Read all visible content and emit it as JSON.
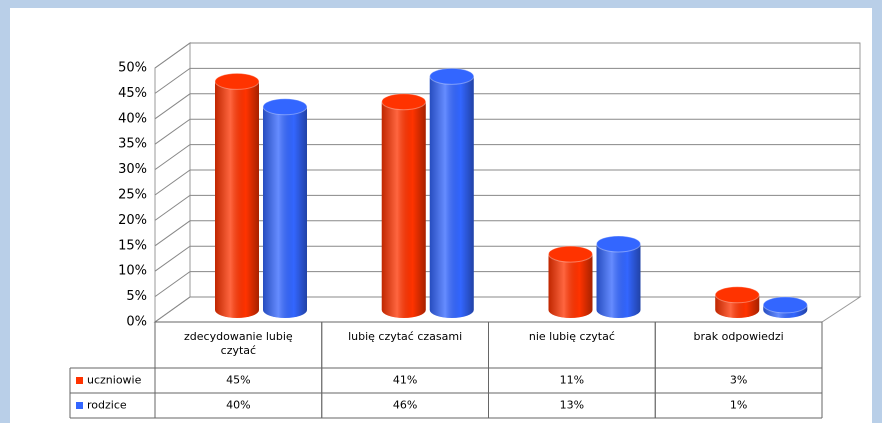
{
  "chart_data": {
    "type": "bar3d",
    "categories": [
      "zdecydowanie lubię czytać",
      "lubię czytać czasami",
      "nie lubię czytać",
      "brak odpowiedzi"
    ],
    "series": [
      {
        "name": "uczniowie",
        "color": "#ff3300",
        "values": [
          45,
          41,
          11,
          3
        ],
        "value_labels": [
          "45%",
          "41%",
          "11%",
          "3%"
        ]
      },
      {
        "name": "rodzice",
        "color": "#3366ff",
        "values": [
          40,
          46,
          13,
          1
        ],
        "value_labels": [
          "40%",
          "46%",
          "13%",
          "1%"
        ]
      }
    ],
    "ylim": [
      0,
      50
    ],
    "yticks": [
      {
        "value": 0,
        "label": "0%"
      },
      {
        "value": 5,
        "label": "5%"
      },
      {
        "value": 10,
        "label": "10%"
      },
      {
        "value": 15,
        "label": "15%"
      },
      {
        "value": 20,
        "label": "20%"
      },
      {
        "value": 25,
        "label": "25%"
      },
      {
        "value": 30,
        "label": "30%"
      },
      {
        "value": 35,
        "label": "35%"
      },
      {
        "value": 40,
        "label": "40%"
      },
      {
        "value": 45,
        "label": "45%"
      },
      {
        "value": 50,
        "label": "50%"
      }
    ],
    "grid": true
  }
}
